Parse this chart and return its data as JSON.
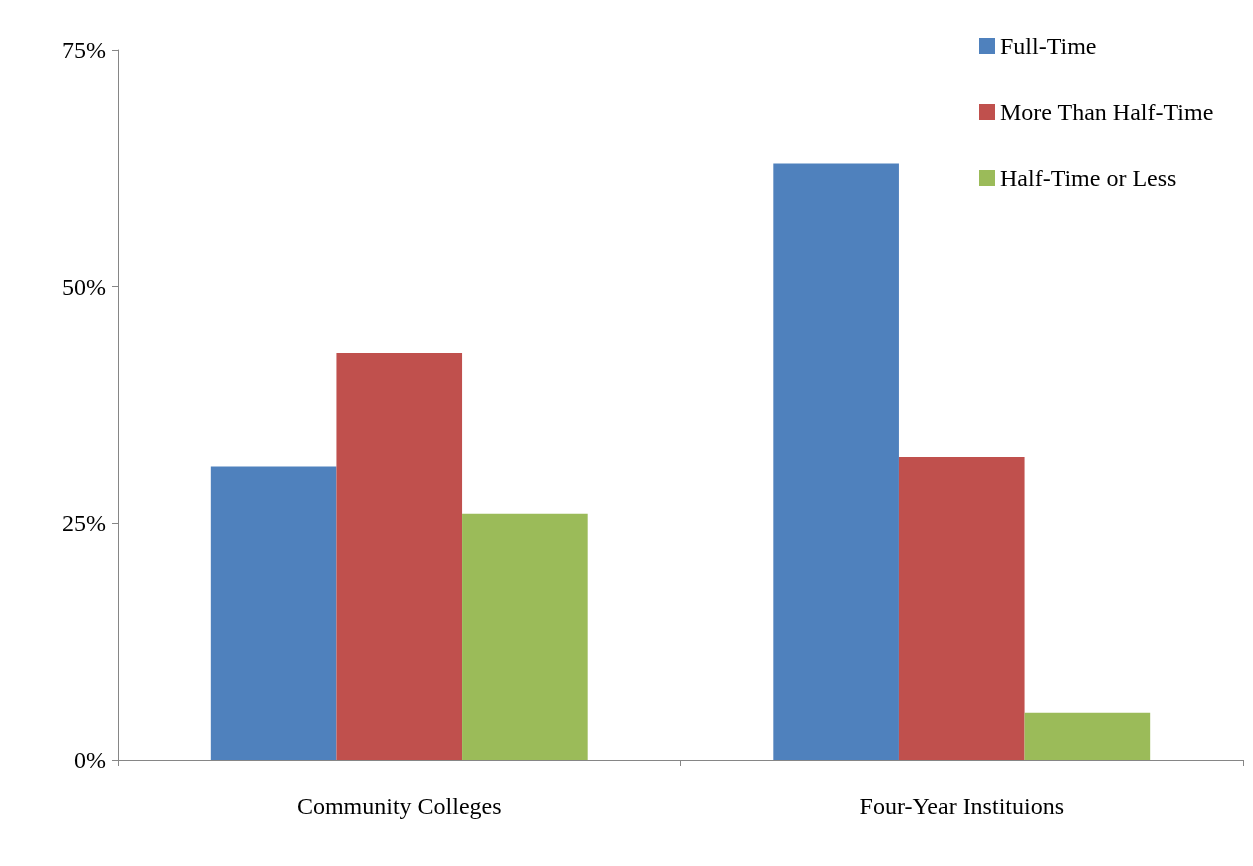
{
  "chart_data": {
    "type": "bar",
    "categories": [
      "Community Colleges",
      "Four-Year Instituions"
    ],
    "series": [
      {
        "name": "Full-Time",
        "color": "#4f81bd",
        "values": [
          31,
          63
        ]
      },
      {
        "name": "More Than Half-Time",
        "color": "#c0504d",
        "values": [
          43,
          32
        ]
      },
      {
        "name": "Half-Time or Less",
        "color": "#9bbb59",
        "values": [
          26,
          5
        ]
      }
    ],
    "ylim": [
      0,
      75
    ],
    "yticks": [
      {
        "value": 0,
        "label": "0%"
      },
      {
        "value": 25,
        "label": "25%"
      },
      {
        "value": 50,
        "label": "50%"
      },
      {
        "value": 75,
        "label": "75%"
      }
    ],
    "grid": false,
    "legend": "top right"
  }
}
